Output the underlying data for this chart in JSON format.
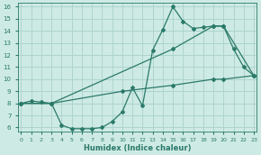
{
  "xlabel": "Humidex (Indice chaleur)",
  "ylabel": "",
  "bg_color": "#ceeae4",
  "grid_color": "#aed4ce",
  "line_color": "#2a7a6a",
  "xlim": [
    -0.3,
    23.3
  ],
  "ylim": [
    5.7,
    16.3
  ],
  "xticks": [
    0,
    1,
    2,
    3,
    4,
    5,
    6,
    7,
    8,
    9,
    10,
    11,
    12,
    13,
    14,
    15,
    16,
    17,
    18,
    19,
    20,
    21,
    22,
    23
  ],
  "yticks": [
    6,
    7,
    8,
    9,
    10,
    11,
    12,
    13,
    14,
    15,
    16
  ],
  "series1_x": [
    0,
    1,
    2,
    3,
    4,
    5,
    6,
    7,
    8,
    9,
    10,
    11,
    12,
    13,
    14,
    15,
    16,
    17,
    18,
    19,
    20,
    21,
    22,
    23
  ],
  "series1_y": [
    8.0,
    8.2,
    8.1,
    8.0,
    6.2,
    5.9,
    5.9,
    5.9,
    6.0,
    6.5,
    7.3,
    9.3,
    7.8,
    12.4,
    14.1,
    16.0,
    14.8,
    14.2,
    14.3,
    14.4,
    14.4,
    12.5,
    11.0,
    10.3
  ],
  "series2_x": [
    0,
    3,
    15,
    19,
    20,
    23
  ],
  "series2_y": [
    8.0,
    8.0,
    12.5,
    14.4,
    14.4,
    10.3
  ],
  "series3_x": [
    0,
    3,
    10,
    15,
    19,
    20,
    23
  ],
  "series3_y": [
    8.0,
    8.0,
    9.0,
    9.5,
    10.0,
    10.0,
    10.3
  ]
}
